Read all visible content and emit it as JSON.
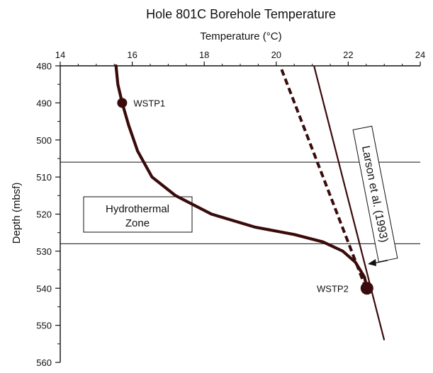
{
  "chart_data": {
    "type": "line",
    "title": "Hole 801C Borehole Temperature",
    "xlabel": "Temperature (°C)",
    "ylabel": "Depth (mbsf)",
    "xlim": [
      14,
      24
    ],
    "ylim": [
      480,
      560
    ],
    "y_inverted": true,
    "x_ticks": [
      "14",
      "16",
      "18",
      "20",
      "22",
      "24"
    ],
    "y_ticks": [
      "480",
      "490",
      "500",
      "510",
      "520",
      "530",
      "540",
      "550",
      "560"
    ],
    "grid": false,
    "series": [
      {
        "style": "thick-solid",
        "x": [
          15.55,
          15.6,
          15.72,
          15.9,
          16.15,
          16.55,
          17.2,
          18.2,
          19.4,
          20.5,
          21.3,
          21.85,
          22.2,
          22.45,
          22.52
        ],
        "y": [
          480,
          485,
          490,
          496,
          503,
          510,
          515,
          520,
          523.5,
          525.5,
          527.5,
          530,
          533,
          537,
          540
        ]
      },
      {
        "style": "dashed",
        "x": [
          20.15,
          22.45
        ],
        "y": [
          481,
          539
        ]
      },
      {
        "name": "Larson et al. (1993)",
        "style": "thin-solid",
        "x": [
          21.05,
          23.0
        ],
        "y": [
          480,
          554
        ]
      }
    ],
    "points": [
      {
        "label": "WSTP1",
        "x": 15.72,
        "y": 490
      },
      {
        "label": "WSTP2",
        "x": 22.52,
        "y": 540
      }
    ],
    "hlines": [
      506,
      528
    ],
    "annotations": {
      "zone": [
        "Hydrothermal",
        "Zone"
      ],
      "larson": "Larson et al. (1993)"
    }
  },
  "colors": {
    "curve": "#3a0b0b",
    "axis": "#111111",
    "background": "#ffffff"
  }
}
